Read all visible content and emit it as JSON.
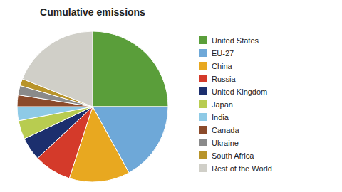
{
  "chart_data": {
    "type": "pie",
    "title": "Cumulative emissions",
    "categories": [
      "United States",
      "EU-27",
      "China",
      "Russia",
      "United Kingdom",
      "Japan",
      "India",
      "Canada",
      "Ukraine",
      "South Africa",
      "Rest of the World"
    ],
    "values": [
      25.0,
      17.0,
      13.0,
      8.0,
      5.0,
      4.0,
      3.0,
      2.5,
      2.0,
      1.5,
      19.0
    ],
    "colors": [
      "#5a9e3a",
      "#6ea8d8",
      "#e8a820",
      "#d43a2a",
      "#1c2f6e",
      "#b8cc50",
      "#8ecae6",
      "#8b4a2a",
      "#8a8a8a",
      "#b8942a",
      "#d0cfc8"
    ],
    "legend": "right"
  }
}
